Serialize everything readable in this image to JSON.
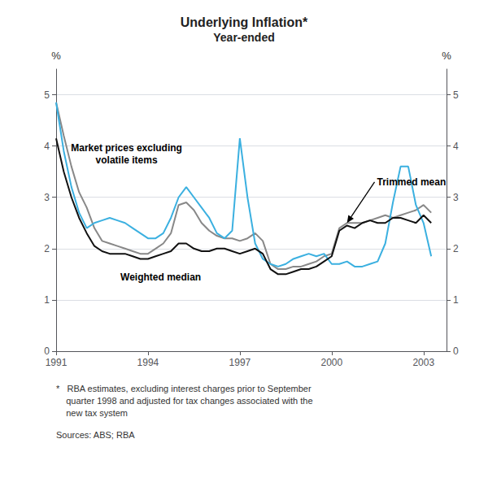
{
  "chart_data": {
    "type": "line",
    "title": "Underlying Inflation*",
    "subtitle": "Year-ended",
    "ylabel": "%",
    "y2label": "%",
    "x": [
      1991.0,
      1991.25,
      1991.5,
      1991.75,
      1992.0,
      1992.25,
      1992.5,
      1992.75,
      1993.0,
      1993.25,
      1993.5,
      1993.75,
      1994.0,
      1994.25,
      1994.5,
      1994.75,
      1995.0,
      1995.25,
      1995.5,
      1995.75,
      1996.0,
      1996.25,
      1996.5,
      1996.75,
      1997.0,
      1997.25,
      1997.5,
      1997.75,
      1998.0,
      1998.25,
      1998.5,
      1998.75,
      1999.0,
      1999.25,
      1999.5,
      1999.75,
      2000.0,
      2000.25,
      2000.5,
      2000.75,
      2001.0,
      2001.25,
      2001.5,
      2001.75,
      2002.0,
      2002.25,
      2002.5,
      2002.75,
      2003.0,
      2003.25
    ],
    "xlim": [
      1991.0,
      2003.75
    ],
    "xticks": [
      1991,
      1994,
      1997,
      2000,
      2003
    ],
    "ylim": [
      0,
      5.5
    ],
    "yticks": [
      0,
      1,
      2,
      3,
      4,
      5
    ],
    "y2lim": [
      0,
      5.5
    ],
    "y2ticks": [
      0,
      1,
      2,
      3,
      4,
      5
    ],
    "grid": true,
    "series": [
      {
        "color": "#3bb0e0",
        "values": [
          4.85,
          3.9,
          3.2,
          2.7,
          2.4,
          2.5,
          2.55,
          2.6,
          2.55,
          2.5,
          2.4,
          2.3,
          2.2,
          2.2,
          2.3,
          2.6,
          3.0,
          3.2,
          3.0,
          2.8,
          2.6,
          2.3,
          2.2,
          2.35,
          4.15,
          3.0,
          2.1,
          1.8,
          1.7,
          1.65,
          1.7,
          1.8,
          1.85,
          1.9,
          1.85,
          1.9,
          1.7,
          1.7,
          1.75,
          1.65,
          1.65,
          1.7,
          1.75,
          2.1,
          2.9,
          3.6,
          3.6,
          2.85,
          2.5,
          1.85
        ]
      },
      {
        "color": "#888888",
        "values": [
          4.85,
          4.2,
          3.6,
          3.1,
          2.8,
          2.4,
          2.15,
          2.1,
          2.05,
          2.0,
          1.95,
          1.9,
          1.9,
          2.0,
          2.1,
          2.3,
          2.85,
          2.9,
          2.75,
          2.5,
          2.35,
          2.25,
          2.2,
          2.2,
          2.15,
          2.2,
          2.3,
          2.15,
          1.7,
          1.6,
          1.6,
          1.65,
          1.65,
          1.7,
          1.75,
          1.85,
          1.9,
          2.4,
          2.5,
          2.5,
          2.5,
          2.55,
          2.6,
          2.65,
          2.6,
          2.65,
          2.7,
          2.75,
          2.85,
          2.7
        ]
      },
      {
        "color": "#111111",
        "values": [
          4.15,
          3.5,
          3.0,
          2.6,
          2.3,
          2.05,
          1.95,
          1.9,
          1.9,
          1.9,
          1.85,
          1.8,
          1.8,
          1.85,
          1.9,
          1.95,
          2.1,
          2.1,
          2.0,
          1.95,
          1.95,
          2.0,
          2.0,
          1.95,
          1.9,
          1.95,
          2.0,
          1.9,
          1.6,
          1.5,
          1.5,
          1.55,
          1.6,
          1.6,
          1.65,
          1.75,
          1.85,
          2.35,
          2.45,
          2.4,
          2.5,
          2.55,
          2.5,
          2.5,
          2.6,
          2.6,
          2.55,
          2.5,
          2.65,
          2.5
        ]
      }
    ],
    "annotations": [
      {
        "text": "Market prices excluding\nvolatile items",
        "x": 1993.3,
        "y": 3.85
      },
      {
        "text": "Weighted median",
        "x": 1993.1,
        "y": 1.45
      },
      {
        "text": "Trimmed mean",
        "x": 2001.4,
        "y": 3.3,
        "arrow_x": 2000.5,
        "arrow_y": 2.5
      }
    ],
    "footnotes": [
      "*   RBA estimates, excluding interest charges prior to September\n    quarter 1998 and adjusted for tax changes associated with the\n    new tax system",
      "Sources: ABS; RBA"
    ]
  }
}
